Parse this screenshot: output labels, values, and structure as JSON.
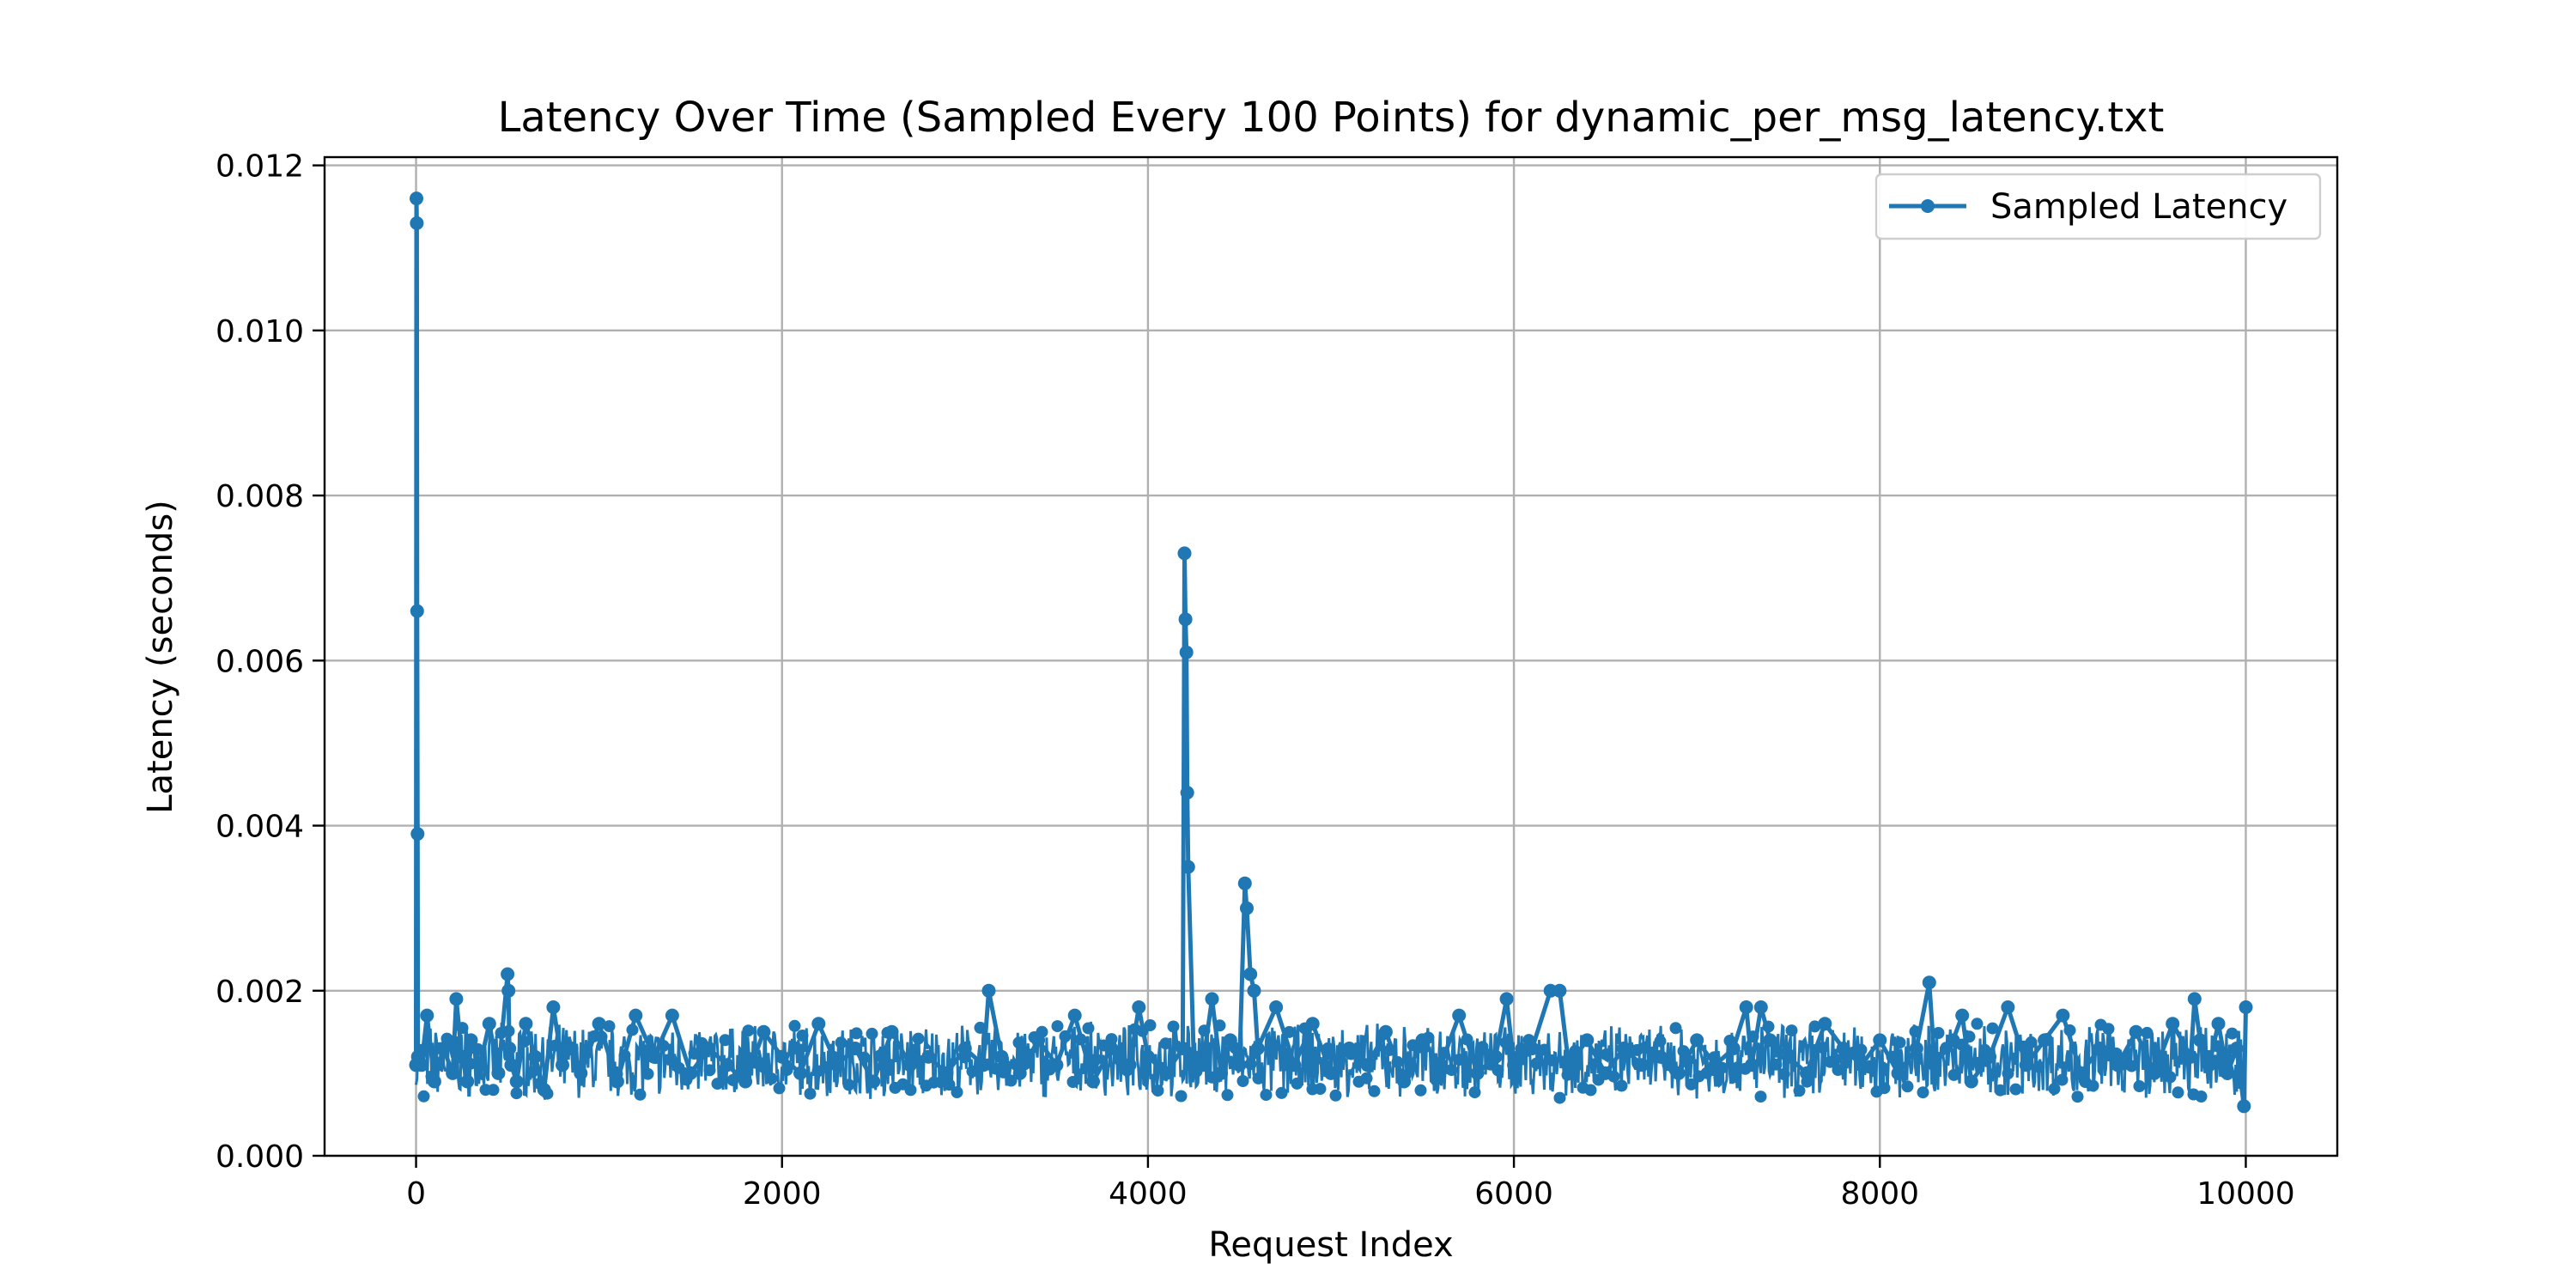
{
  "chart_data": {
    "type": "line",
    "title": "Latency Over Time (Sampled Every 100 Points) for dynamic_per_msg_latency.txt",
    "xlabel": "Request Index",
    "ylabel": "Latency (seconds)",
    "xlim": [
      -500,
      10500
    ],
    "ylim": [
      0,
      0.0121
    ],
    "xticks": [
      0,
      2000,
      4000,
      6000,
      8000,
      10000
    ],
    "xtick_labels": [
      "0",
      "2000",
      "4000",
      "6000",
      "8000",
      "10000"
    ],
    "yticks": [
      0,
      0.002,
      0.004,
      0.006,
      0.008,
      0.01,
      0.012
    ],
    "ytick_labels": [
      "0.000",
      "0.002",
      "0.004",
      "0.006",
      "0.008",
      "0.010",
      "0.012"
    ],
    "grid": true,
    "legend_position": "top-right",
    "series": [
      {
        "name": "Sampled Latency",
        "color": "#1f77b4",
        "x": [
          0,
          2,
          4,
          6,
          8,
          10,
          30,
          60,
          100,
          150,
          200,
          220,
          250,
          280,
          300,
          350,
          400,
          450,
          500,
          505,
          510,
          520,
          550,
          600,
          650,
          700,
          750,
          800,
          850,
          900,
          1000,
          1100,
          1200,
          1300,
          1400,
          1500,
          1600,
          1700,
          1800,
          1900,
          2000,
          2100,
          2200,
          2300,
          2400,
          2500,
          2600,
          2700,
          2800,
          2900,
          3000,
          3100,
          3130,
          3200,
          3300,
          3400,
          3500,
          3600,
          3700,
          3800,
          3900,
          3950,
          4000,
          4100,
          4190,
          4200,
          4205,
          4210,
          4215,
          4220,
          4250,
          4300,
          4350,
          4400,
          4450,
          4500,
          4530,
          4540,
          4560,
          4580,
          4600,
          4700,
          4800,
          4900,
          5000,
          5100,
          5200,
          5300,
          5400,
          5500,
          5600,
          5700,
          5800,
          5900,
          5960,
          6000,
          6100,
          6200,
          6250,
          6300,
          6400,
          6500,
          6600,
          6700,
          6800,
          6900,
          7000,
          7100,
          7200,
          7270,
          7300,
          7350,
          7400,
          7500,
          7600,
          7700,
          7800,
          7900,
          8000,
          8100,
          8200,
          8270,
          8300,
          8400,
          8450,
          8500,
          8600,
          8700,
          8800,
          8900,
          9000,
          9100,
          9200,
          9300,
          9400,
          9500,
          9600,
          9700,
          9720,
          9750,
          9800,
          9850,
          9900,
          9950,
          9990,
          10000
        ],
        "values": [
          0.0011,
          0.0116,
          0.0113,
          0.0066,
          0.0039,
          0.0012,
          0.0011,
          0.0017,
          0.0009,
          0.0013,
          0.001,
          0.0019,
          0.0012,
          0.0009,
          0.0014,
          0.0011,
          0.0016,
          0.001,
          0.0022,
          0.002,
          0.0013,
          0.0011,
          0.0009,
          0.0016,
          0.0012,
          0.0008,
          0.0018,
          0.0011,
          0.0013,
          0.001,
          0.0016,
          0.0009,
          0.0017,
          0.0012,
          0.0017,
          0.001,
          0.0013,
          0.0011,
          0.0009,
          0.0015,
          0.0012,
          0.001,
          0.0016,
          0.0011,
          0.0013,
          0.0009,
          0.0015,
          0.0011,
          0.0012,
          0.001,
          0.0013,
          0.0011,
          0.002,
          0.0012,
          0.001,
          0.0014,
          0.0011,
          0.0017,
          0.0009,
          0.0013,
          0.0011,
          0.0018,
          0.0012,
          0.001,
          0.0013,
          0.0073,
          0.0065,
          0.0061,
          0.0044,
          0.0035,
          0.0012,
          0.0011,
          0.0019,
          0.001,
          0.0014,
          0.0011,
          0.0033,
          0.003,
          0.0022,
          0.002,
          0.0013,
          0.0018,
          0.0011,
          0.0016,
          0.001,
          0.0013,
          0.0011,
          0.0015,
          0.0009,
          0.0014,
          0.0011,
          0.0017,
          0.001,
          0.0012,
          0.0019,
          0.0011,
          0.0013,
          0.002,
          0.002,
          0.0011,
          0.0014,
          0.001,
          0.0013,
          0.0011,
          0.0012,
          0.001,
          0.0014,
          0.0011,
          0.0013,
          0.0018,
          0.0011,
          0.0018,
          0.0014,
          0.0012,
          0.001,
          0.0016,
          0.0013,
          0.0011,
          0.0014,
          0.001,
          0.0013,
          0.0021,
          0.0011,
          0.0014,
          0.0017,
          0.0009,
          0.0012,
          0.0018,
          0.0011,
          0.0014,
          0.0017,
          0.001,
          0.0013,
          0.0011,
          0.0015,
          0.001,
          0.0016,
          0.0012,
          0.0019,
          0.0014,
          0.0011,
          0.0016,
          0.001,
          0.0013,
          0.0006,
          0.0018
        ]
      }
    ]
  }
}
